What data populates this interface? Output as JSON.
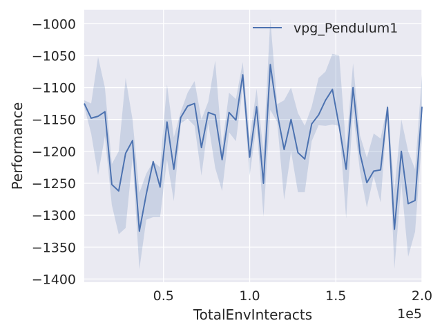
{
  "chart_data": {
    "type": "line",
    "title": "",
    "xlabel": "TotalEnvInteracts",
    "ylabel": "Performance",
    "x_offset_label": "1e5",
    "xlim": [
      4000,
      200000
    ],
    "ylim": [
      -1405,
      -978
    ],
    "x_ticks": [
      50000,
      100000,
      150000,
      200000
    ],
    "x_tick_labels": [
      "0.5",
      "1.0",
      "1.5",
      "2.0"
    ],
    "y_ticks": [
      -1000,
      -1050,
      -1100,
      -1150,
      -1200,
      -1250,
      -1300,
      -1350,
      -1400
    ],
    "y_tick_labels": [
      "−1000",
      "−1050",
      "−1100",
      "−1150",
      "−1200",
      "−1250",
      "−1300",
      "−1350",
      "−1400"
    ],
    "grid": true,
    "legend_position": "top-right",
    "background_color": "#eaeaf2",
    "series": [
      {
        "name": "vpg_Pendulum1",
        "color": "#4c72b0",
        "band_color": "#4c72b0",
        "x": [
          4000,
          8000,
          12000,
          16000,
          20000,
          24000,
          28000,
          32000,
          36000,
          40000,
          44000,
          48000,
          52000,
          56000,
          60000,
          64000,
          68000,
          72000,
          76000,
          80000,
          84000,
          88000,
          92000,
          96000,
          100000,
          104000,
          108000,
          112000,
          116000,
          120000,
          124000,
          128000,
          132000,
          136000,
          140000,
          144000,
          148000,
          152000,
          156000,
          160000,
          164000,
          168000,
          172000,
          176000,
          180000,
          184000,
          188000,
          192000,
          196000,
          200000
        ],
        "y": [
          -1125,
          -1148,
          -1145,
          -1138,
          -1252,
          -1262,
          -1203,
          -1183,
          -1325,
          -1267,
          -1216,
          -1256,
          -1154,
          -1228,
          -1147,
          -1129,
          -1125,
          -1194,
          -1139,
          -1143,
          -1213,
          -1139,
          -1151,
          -1080,
          -1209,
          -1130,
          -1250,
          -1064,
          -1140,
          -1197,
          -1150,
          -1202,
          -1212,
          -1157,
          -1143,
          -1120,
          -1103,
          -1161,
          -1228,
          -1100,
          -1203,
          -1249,
          -1231,
          -1229,
          -1131,
          -1322,
          -1200,
          -1282,
          -1277,
          -1130
        ],
        "y_upper": [
          -1120,
          -1125,
          -1052,
          -1100,
          -1220,
          -1200,
          -1085,
          -1150,
          -1265,
          -1235,
          -1216,
          -1225,
          -1095,
          -1178,
          -1138,
          -1108,
          -1090,
          -1150,
          -1122,
          -1058,
          -1193,
          -1108,
          -1118,
          -1060,
          -1180,
          -1102,
          -1200,
          -993,
          -1126,
          -1120,
          -1100,
          -1140,
          -1160,
          -1130,
          -1085,
          -1075,
          -1047,
          -1050,
          -1195,
          -1062,
          -1175,
          -1210,
          -1172,
          -1180,
          -1127,
          -1260,
          -1150,
          -1200,
          -1228,
          -1080
        ],
        "y_lower": [
          -1130,
          -1172,
          -1237,
          -1176,
          -1284,
          -1330,
          -1320,
          -1210,
          -1385,
          -1307,
          -1303,
          -1303,
          -1213,
          -1278,
          -1156,
          -1149,
          -1160,
          -1238,
          -1156,
          -1226,
          -1262,
          -1170,
          -1184,
          -1100,
          -1238,
          -1158,
          -1302,
          -1135,
          -1154,
          -1276,
          -1200,
          -1264,
          -1264,
          -1184,
          -1159,
          -1160,
          -1158,
          -1160,
          -1305,
          -1138,
          -1231,
          -1288,
          -1239,
          -1280,
          -1135,
          -1384,
          -1250,
          -1365,
          -1326,
          -1180
        ]
      }
    ]
  }
}
